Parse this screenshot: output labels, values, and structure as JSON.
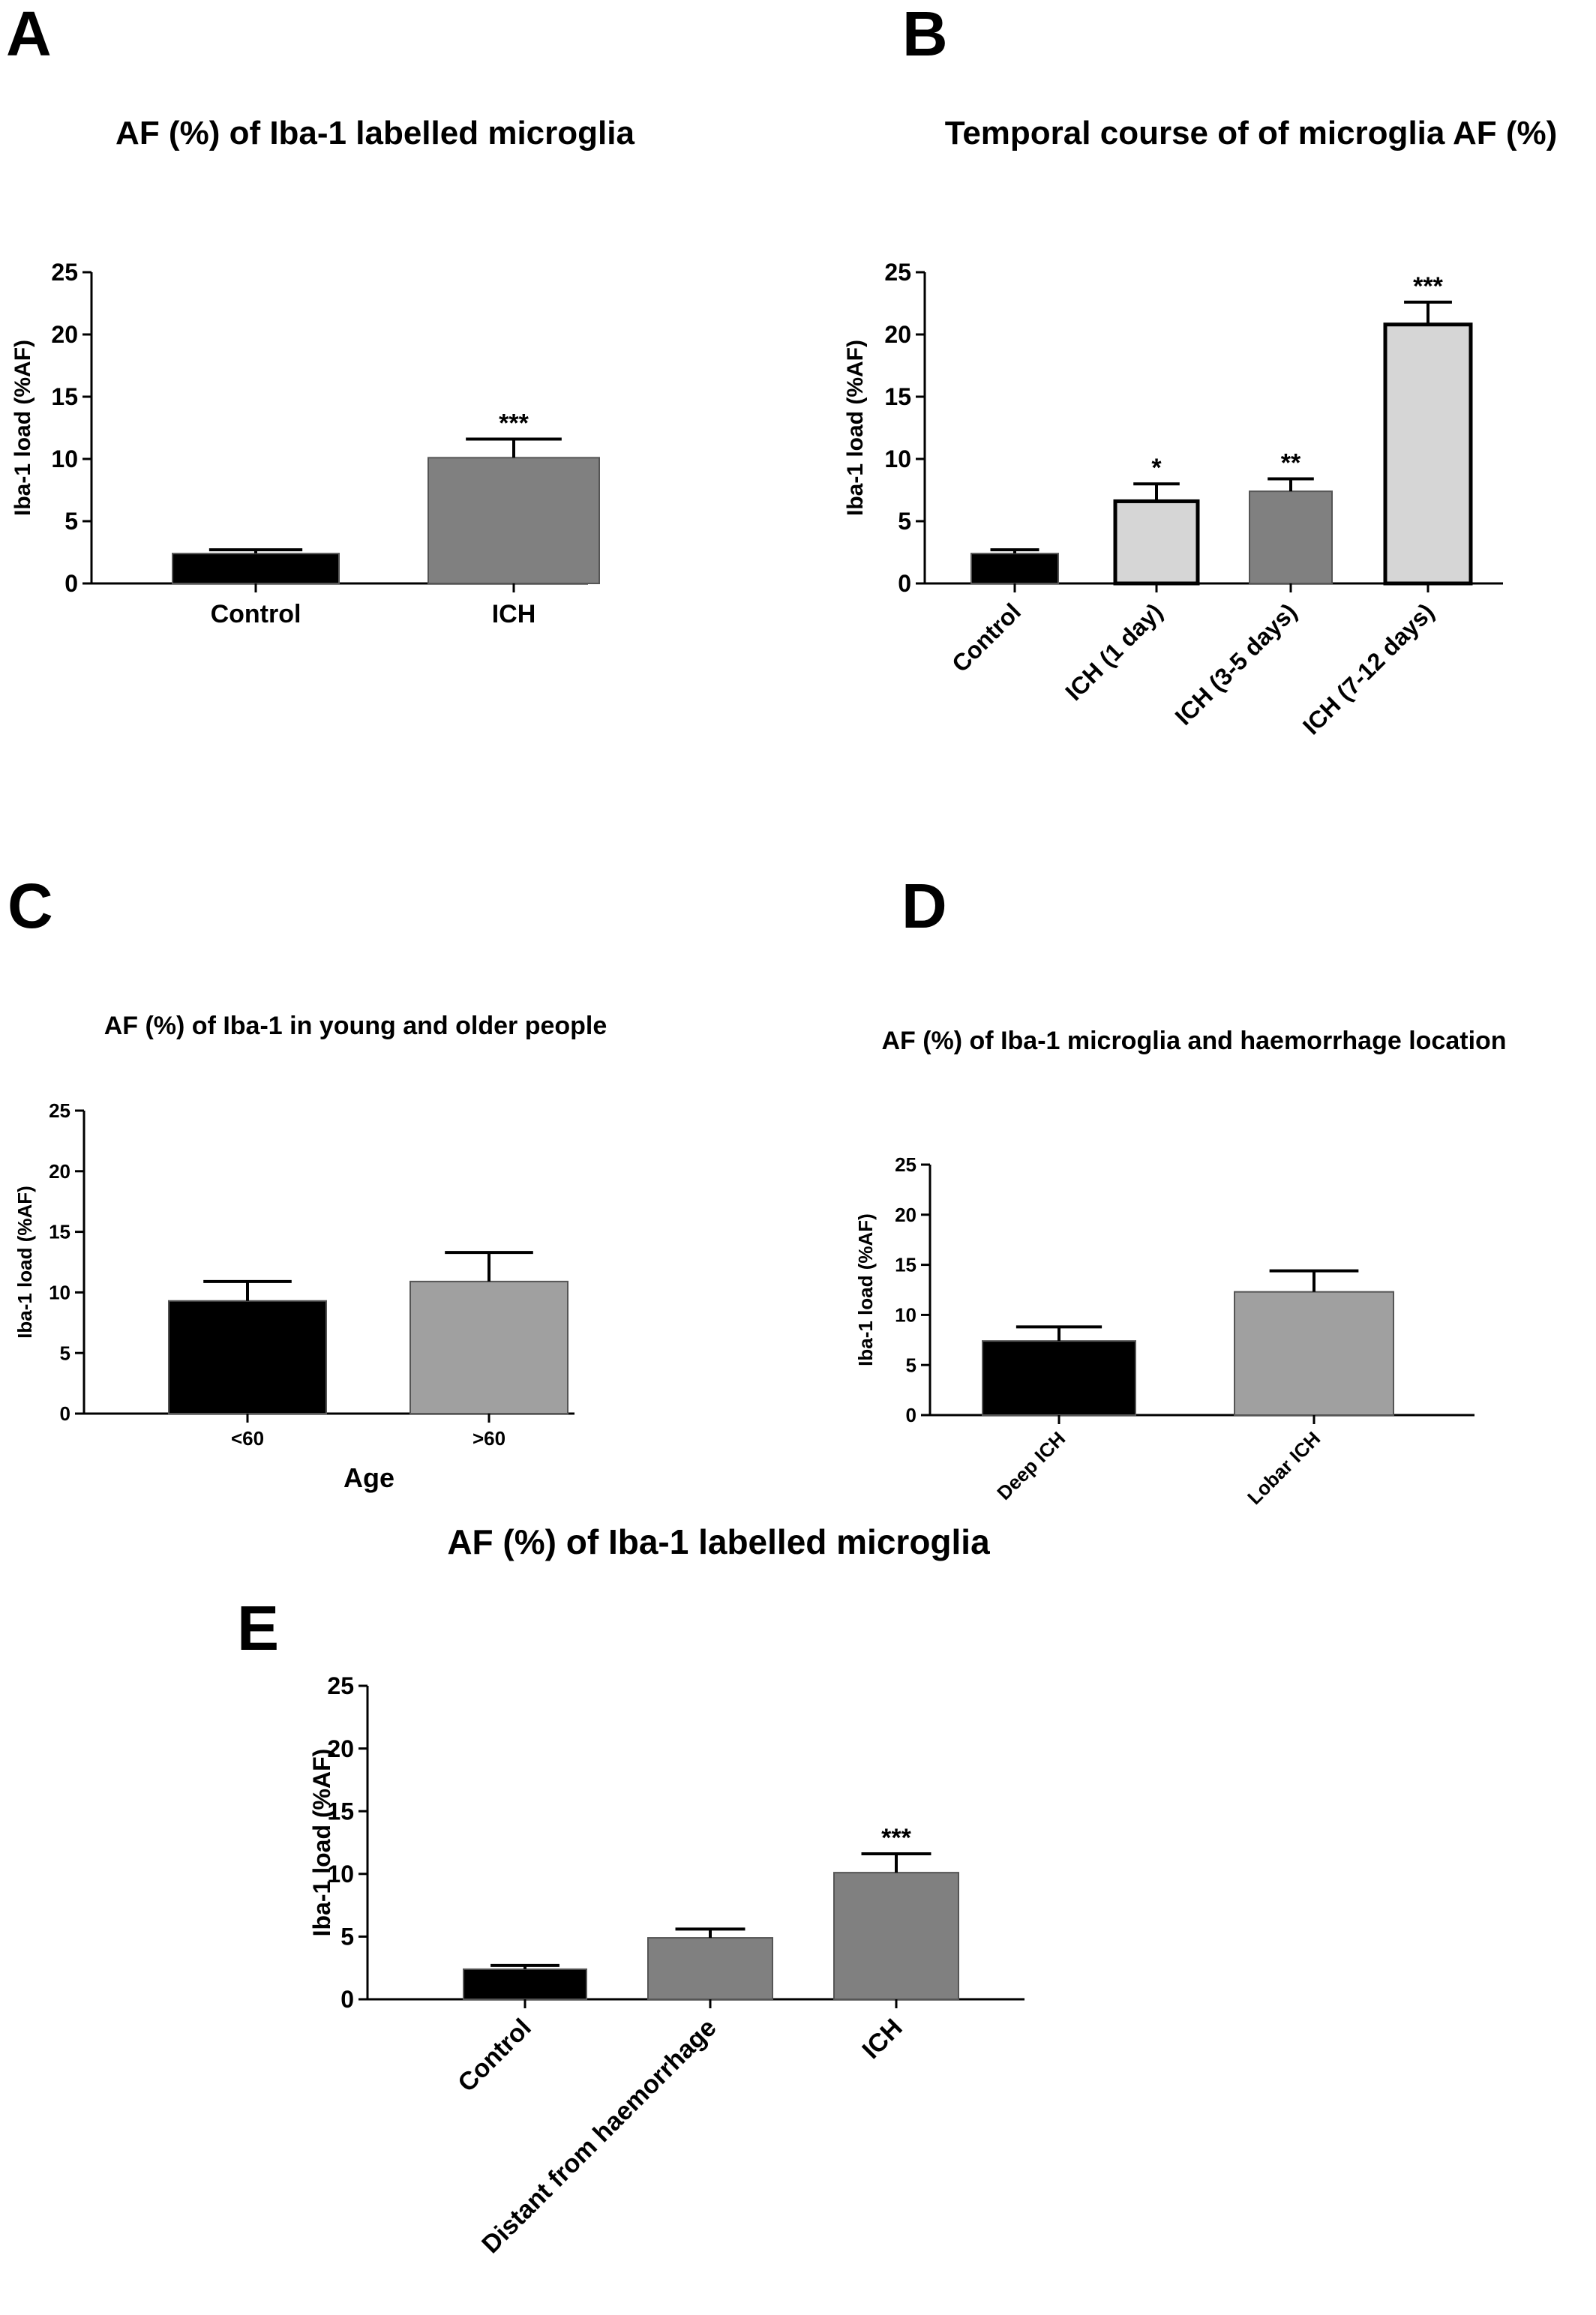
{
  "chart_data": [
    {
      "type": "bar",
      "panel": "A",
      "title": "AF (%) of Iba-1 labelled microglia",
      "ylabel": "Iba-1 load (%AF)",
      "xlabel": "",
      "ylim": [
        0,
        25
      ],
      "yticks": [
        "0",
        "5",
        "10",
        "15",
        "20",
        "25"
      ],
      "categories": [
        "Control",
        "ICH"
      ],
      "values": [
        2.4,
        10.1
      ],
      "errors": [
        0.3,
        1.5
      ],
      "significance": [
        "",
        "***"
      ],
      "colors": [
        "#000000",
        "#808080"
      ]
    },
    {
      "type": "bar",
      "panel": "B",
      "title": "Temporal course of of microglia AF (%)",
      "ylabel": "Iba-1 load (%AF)",
      "xlabel": "",
      "ylim": [
        0,
        25
      ],
      "yticks": [
        "0",
        "5",
        "10",
        "15",
        "20",
        "25"
      ],
      "categories": [
        "Control",
        "ICH (1 day)",
        "ICH (3-5 days)",
        "ICH (7-12 days)"
      ],
      "values": [
        2.4,
        6.6,
        7.4,
        20.8
      ],
      "errors": [
        0.3,
        1.4,
        1.0,
        1.8
      ],
      "significance": [
        "",
        "*",
        "**",
        "***"
      ],
      "colors": [
        "#000000",
        "#d6d6d6",
        "#808080",
        "#d6d6d6"
      ]
    },
    {
      "type": "bar",
      "panel": "C",
      "title": "AF (%) of Iba-1 in young and older people",
      "ylabel": "Iba-1 load (%AF)",
      "xlabel": "Age",
      "ylim": [
        0,
        25
      ],
      "yticks": [
        "0",
        "5",
        "10",
        "15",
        "20",
        "25"
      ],
      "categories": [
        "<60",
        ">60"
      ],
      "values": [
        9.3,
        10.9
      ],
      "errors": [
        1.6,
        2.4
      ],
      "significance": [
        "",
        ""
      ],
      "colors": [
        "#000000",
        "#a0a0a0"
      ]
    },
    {
      "type": "bar",
      "panel": "D",
      "title": "AF (%) of Iba-1 microglia and haemorrhage location",
      "ylabel": "Iba-1 load (%AF)",
      "xlabel": "",
      "ylim": [
        0,
        25
      ],
      "yticks": [
        "0",
        "5",
        "10",
        "15",
        "20",
        "25"
      ],
      "categories": [
        "Deep ICH",
        "Lobar ICH"
      ],
      "values": [
        7.4,
        12.3
      ],
      "errors": [
        1.4,
        2.1
      ],
      "significance": [
        "",
        ""
      ],
      "colors": [
        "#000000",
        "#a0a0a0"
      ]
    },
    {
      "type": "bar",
      "panel": "E",
      "title": "AF (%) of Iba-1 labelled microglia",
      "ylabel": "Iba-1 load (%AF)",
      "xlabel": "",
      "ylim": [
        0,
        25
      ],
      "yticks": [
        "0",
        "5",
        "10",
        "15",
        "20",
        "25"
      ],
      "categories": [
        "Control",
        "Distant from haemorrhage",
        "ICH"
      ],
      "values": [
        2.4,
        4.9,
        10.1
      ],
      "errors": [
        0.3,
        0.7,
        1.5
      ],
      "significance": [
        "",
        "",
        "***"
      ],
      "colors": [
        "#000000",
        "#808080",
        "#808080"
      ]
    }
  ]
}
